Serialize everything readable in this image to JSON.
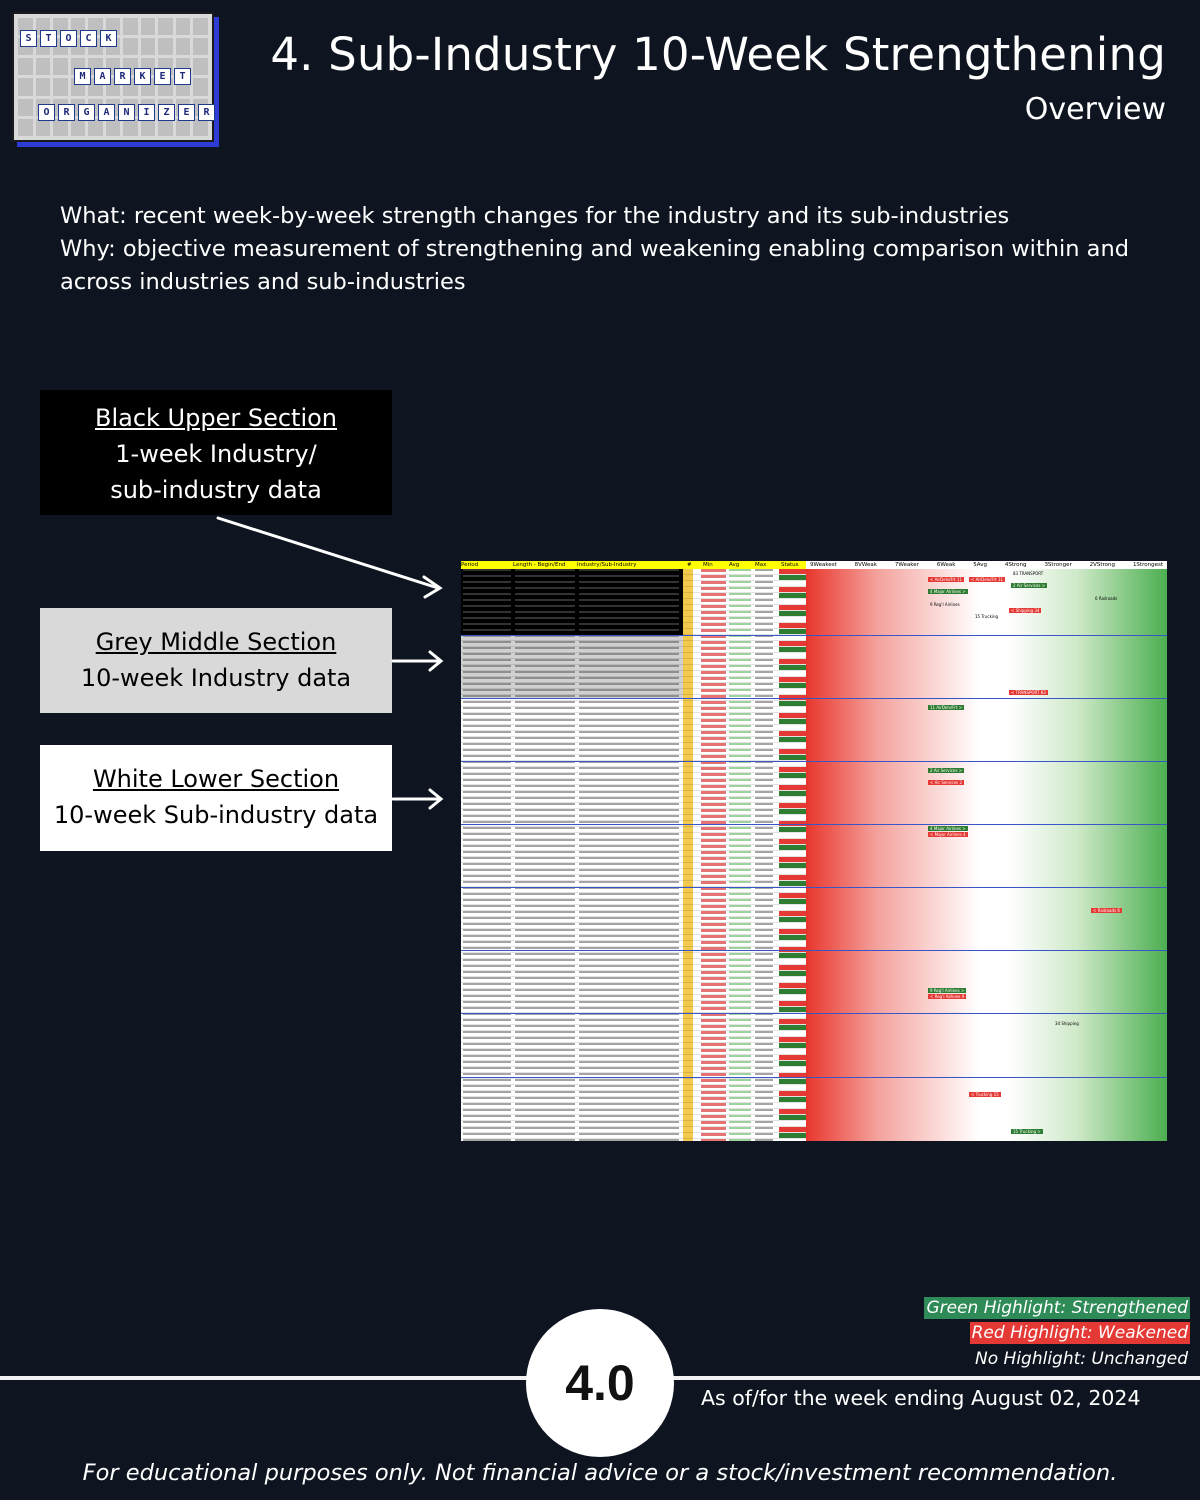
{
  "logo": {
    "row1": [
      "S",
      "T",
      "O",
      "C",
      "K"
    ],
    "row2": [
      "M",
      "A",
      "R",
      "K",
      "E",
      "T"
    ],
    "row3": [
      "O",
      "R",
      "G",
      "A",
      "N",
      "I",
      "Z",
      "E",
      "R"
    ]
  },
  "header": {
    "title": "4. Sub-Industry 10-Week Strengthening",
    "subtitle": "Overview"
  },
  "description": {
    "line1": "What: recent week-by-week strength changes for the industry and its sub-industries",
    "line2": "Why: objective measurement of strengthening and weakening enabling comparison within and across industries and sub-industries"
  },
  "callouts": {
    "black": {
      "heading": "Black Upper Section",
      "line1": "1-week Industry/",
      "line2": "sub-industry data"
    },
    "grey": {
      "heading": "Grey Middle Section",
      "line1": "10-week Industry data"
    },
    "white": {
      "heading": "White Lower Section",
      "line1": "10-week Sub-industry data"
    }
  },
  "sheet": {
    "left_headers": [
      "Period",
      "Length - Begin/End",
      "Industry/Sub-Industry",
      "#",
      "Min",
      "Avg",
      "Max",
      "Status"
    ],
    "right_headers": [
      "9Weakest",
      "8VWeak",
      "7Weaker",
      "6Weak",
      "5Avg",
      "4Strong",
      "3Stronger",
      "2VStrong",
      "1Strongest"
    ],
    "tags": [
      {
        "text": "83 TRANSPORT",
        "kind": "t"
      },
      {
        "text": "< AirDelv/Frt 11",
        "kind": "r"
      },
      {
        "text": "< AirDelv/Frt 11",
        "kind": "r"
      },
      {
        "text": "2 Air Services >",
        "kind": "g"
      },
      {
        "text": "4 Major Airlines >",
        "kind": "g"
      },
      {
        "text": "6 Railroads",
        "kind": "t"
      },
      {
        "text": "9 Reg'l Airlines",
        "kind": "t"
      },
      {
        "text": "< Shipping 34",
        "kind": "r"
      },
      {
        "text": "15 Trucking",
        "kind": "t"
      },
      {
        "text": "< TRANSPORT 83",
        "kind": "r"
      },
      {
        "text": "11 AirDelv/Frt >",
        "kind": "g"
      },
      {
        "text": "2 Air Services >",
        "kind": "g"
      },
      {
        "text": "< Air Services 2",
        "kind": "r"
      },
      {
        "text": "4 Major Airlines >",
        "kind": "g"
      },
      {
        "text": "< Major Airlines 4",
        "kind": "r"
      },
      {
        "text": "< Railroads 6",
        "kind": "r"
      },
      {
        "text": "9 Reg'l Airlines >",
        "kind": "g"
      },
      {
        "text": "< Reg'l Airlines 9",
        "kind": "r"
      },
      {
        "text": "34 Shipping",
        "kind": "t"
      },
      {
        "text": "< Trucking 15",
        "kind": "r"
      },
      {
        "text": "15 Trucking >",
        "kind": "g"
      }
    ]
  },
  "legend": {
    "green": "Green Highlight: Strengthened",
    "red": "Red Highlight: Weakened",
    "none": "No Highlight: Unchanged"
  },
  "badge": "4.0",
  "as_of": "As of/for the week ending August 02, 2024",
  "footer": "For educational purposes only. Not financial advice or a stock/investment recommendation.",
  "colors": {
    "background": "#0e1520",
    "strengthened": "#2e8b57",
    "weakened": "#e53935",
    "logo_accent": "#2e3cd6"
  }
}
